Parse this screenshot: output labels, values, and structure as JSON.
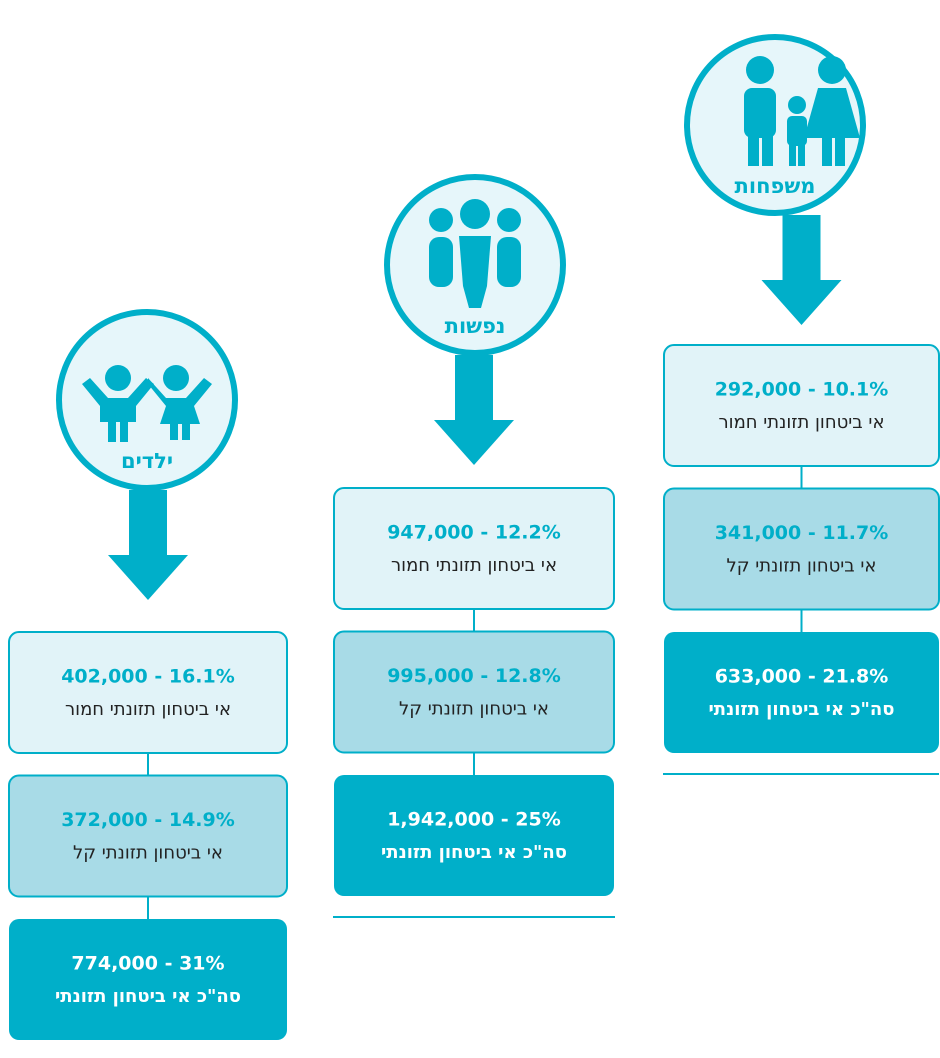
{
  "columns": [
    {
      "label": "משפחות",
      "rows": [
        {
          "stat": "292,000 - 10.1%",
          "text": "אי ביטחון תזונתי חמור"
        },
        {
          "stat": "341,000 - 11.7%",
          "text": "אי ביטחון תזונתי קל"
        },
        {
          "stat": "633,000 - 21.8%",
          "text": "סה\"כ אי ביטחון תזונתי"
        }
      ]
    },
    {
      "label": "נפשות",
      "rows": [
        {
          "stat": "947,000 - 12.2%",
          "text": "אי ביטחון תזונתי חמור"
        },
        {
          "stat": "995,000 - 12.8%",
          "text": "אי ביטחון תזונתי קל"
        },
        {
          "stat": "1,942,000 - 25%",
          "text": "סה\"כ אי ביטחון תזונתי"
        }
      ]
    },
    {
      "label": "ילדים",
      "rows": [
        {
          "stat": "402,000 - 16.1%",
          "text": "אי ביטחון תזונתי חמור"
        },
        {
          "stat": "372,000 - 14.9%",
          "text": "אי ביטחון תזונתי קל"
        },
        {
          "stat": "774,000 - 31%",
          "text": "סה\"כ אי ביטחון תזונתי"
        }
      ]
    }
  ]
}
